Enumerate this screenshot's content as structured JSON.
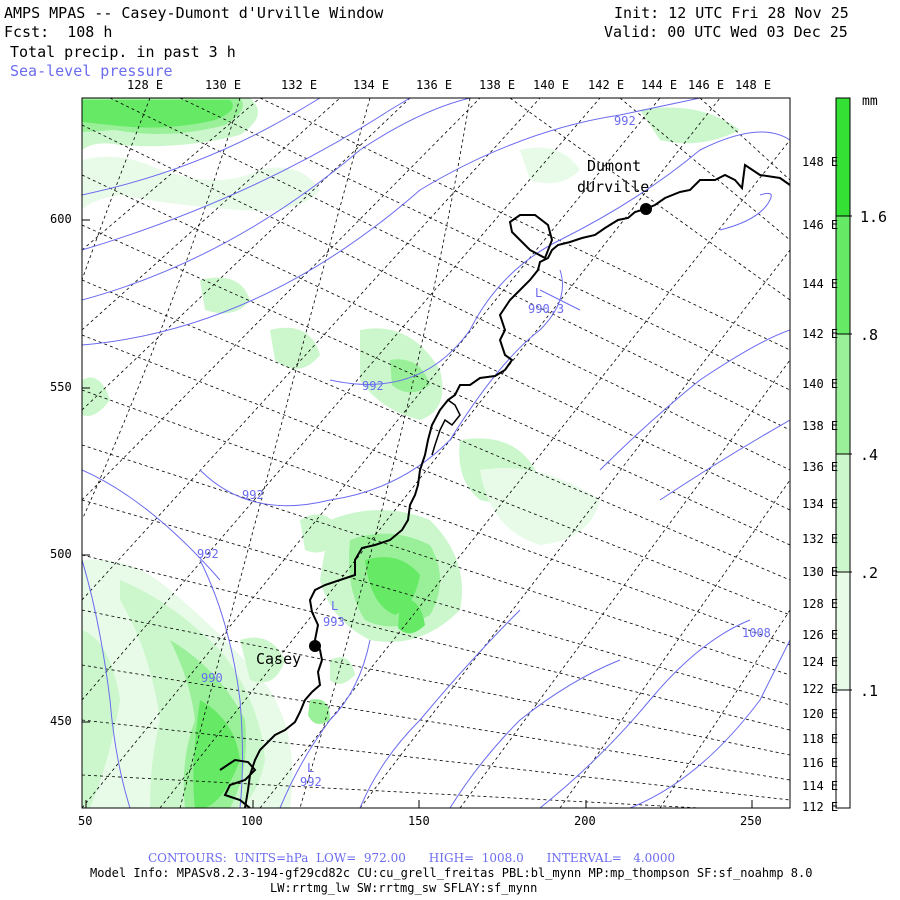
{
  "header": {
    "title": "AMPS MPAS -- Casey-Dumont d'Urville Window",
    "forecast": "Fcst:  108 h",
    "field": "Total precip. in past 3 h",
    "overlay": "Sea-level pressure",
    "init": "Init: 12 UTC Fri 28 Nov 25",
    "valid": "Valid: 00 UTC Wed 03 Dec 25"
  },
  "axes": {
    "top_lon": [
      "128 E",
      "130 E",
      "132 E",
      "134 E",
      "136 E",
      "138 E",
      "140 E",
      "142 E",
      "144 E",
      "146 E",
      "148 E"
    ],
    "right_lon": [
      "148 E",
      "146 E",
      "144 E",
      "142 E",
      "140 E",
      "138 E",
      "136 E",
      "134 E",
      "132 E",
      "130 E",
      "128 E",
      "126 E",
      "124 E",
      "122 E",
      "120 E",
      "118 E",
      "116 E",
      "114 E",
      "112 E"
    ],
    "left_y": [
      "600",
      "550",
      "500",
      "450"
    ],
    "bottom_x": [
      "50",
      "100",
      "150",
      "200",
      "250"
    ]
  },
  "places": {
    "dumont": "Dumont",
    "durville": "dUrville",
    "casey": "Casey"
  },
  "contour_labels": [
    "992",
    "L",
    "990.3",
    "992",
    "992",
    "992",
    "L",
    "993",
    "990",
    "L",
    "992",
    "1008"
  ],
  "colorbar": {
    "unit": "mm",
    "labels": [
      "1.6",
      ".8",
      ".4",
      ".2",
      ".1"
    ],
    "colors": [
      "#33e033",
      "#66ea66",
      "#99f099",
      "#ccf7cc",
      "#e8fbe8"
    ]
  },
  "footer": {
    "contours": "CONTOURS:  UNITS=hPa  LOW=  972.00      HIGH=  1008.0      INTERVAL=   4.0000",
    "model1": "Model Info: MPASv8.2.3-194-gf29cd82c CU:cu_grell_freitas PBL:bl_mynn MP:mp_thompson SF:sf_noahmp 8.0",
    "model2": "LW:rrtmg_lw SW:rrtmg_sw SFLAY:sf_mynn"
  }
}
